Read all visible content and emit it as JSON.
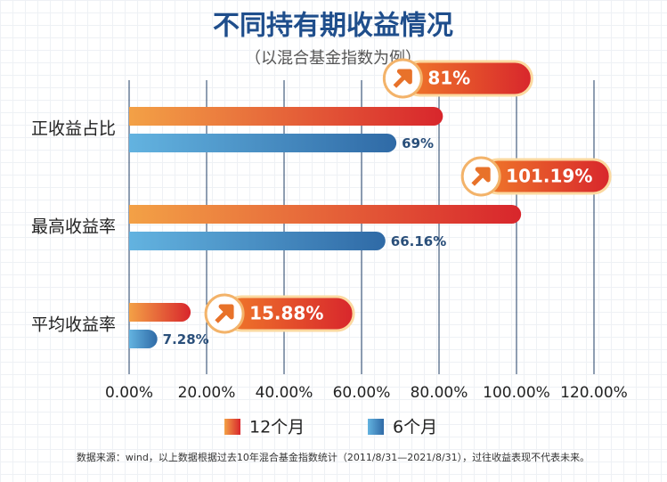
{
  "chart_data": {
    "type": "hbar",
    "title": "不同持有期收益情况",
    "subtitle": "（以混合基金指数为例）",
    "categories": [
      "正收益占比",
      "最高收益率",
      "平均收益率"
    ],
    "series": [
      {
        "name": "12个月",
        "color": "#d8262c",
        "values": [
          81,
          101.19,
          15.88
        ],
        "value_labels": [
          "81%",
          "101.19%",
          "15.88%"
        ]
      },
      {
        "name": "6个月",
        "color": "#2f6aa6",
        "values": [
          69,
          66.16,
          7.28
        ],
        "value_labels": [
          "69%",
          "66.16%",
          "7.28%"
        ]
      }
    ],
    "xlim": [
      0,
      120
    ],
    "xticks": [
      {
        "value": 0,
        "label": "0.00%"
      },
      {
        "value": 20,
        "label": "20.00%"
      },
      {
        "value": 40,
        "label": "40.00%"
      },
      {
        "value": 60,
        "label": "60.00%"
      },
      {
        "value": 80,
        "label": "80.00%"
      },
      {
        "value": 100,
        "label": "100.00%"
      },
      {
        "value": 120,
        "label": "120.00%"
      }
    ],
    "grid": true,
    "footnote": "数据来源：wind，以上数据根据过去10年混合基金指数统计（2011/8/31—2021/8/31），过往收益表现不代表未来。"
  }
}
